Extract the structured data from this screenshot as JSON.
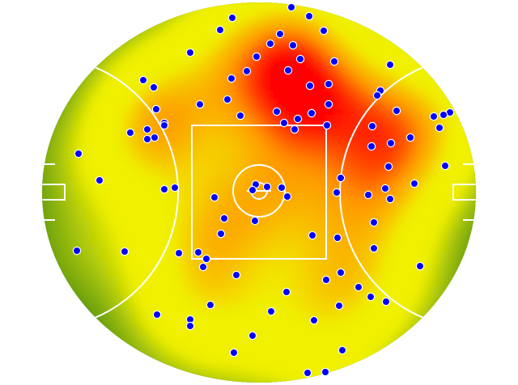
{
  "chart_data": {
    "type": "scatter",
    "color": "#0000ff",
    "xlim": [
      -268,
      268
    ],
    "ylim": [
      -235,
      235
    ],
    "x": [
      40,
      62,
      -33,
      -48,
      80,
      26,
      14,
      42,
      -85,
      -3,
      51,
      93,
      162,
      -15,
      36,
      -34,
      -143,
      -130,
      63,
      86,
      150,
      146,
      -39,
      -73,
      86,
      -127,
      22,
      65,
      170,
      -23,
      236,
      228,
      216,
      48,
      31,
      -117,
      -117,
      44,
      84,
      140,
      223,
      -159,
      -138,
      -138,
      -129,
      187,
      163,
      139,
      -223,
      160,
      230,
      101,
      -197,
      192,
      -4,
      10,
      -8,
      28,
      156,
      -104,
      -117,
      96,
      135,
      35,
      -55,
      162,
      -5,
      -43,
      142,
      -47,
      66,
      97,
      142,
      -225,
      -166,
      -99,
      -75,
      -65,
      -69,
      199,
      -28,
      101,
      83,
      123,
      34,
      138,
      157,
      -60,
      99,
      15,
      -126,
      -85,
      -85,
      68,
      -8,
      103,
      -31,
      60,
      82
    ],
    "y": [
      229,
      218,
      216,
      201,
      200,
      196,
      184,
      182,
      173,
      168,
      165,
      162,
      158,
      150,
      151,
      141,
      139,
      130,
      132,
      134,
      126,
      120,
      115,
      109,
      109,
      103,
      100,
      98,
      101,
      95,
      99,
      96,
      94,
      91,
      86,
      86,
      83,
      78,
      83,
      82,
      80,
      74,
      78,
      66,
      68,
      68,
      61,
      57,
      48,
      32,
      33,
      18,
      15,
      11,
      10,
      7,
      3,
      6,
      5,
      6,
      4,
      0,
      -3,
      -5,
      -6,
      -8,
      -35,
      -32,
      -37,
      -51,
      -53,
      -56,
      -69,
      -72,
      -73,
      -75,
      -74,
      -82,
      -92,
      -91,
      -102,
      -99,
      -108,
      -117,
      -123,
      -129,
      -135,
      -139,
      -140,
      -147,
      -151,
      -157,
      -165,
      -158,
      -177,
      -195,
      -198,
      -223,
      -222
    ]
  }
}
